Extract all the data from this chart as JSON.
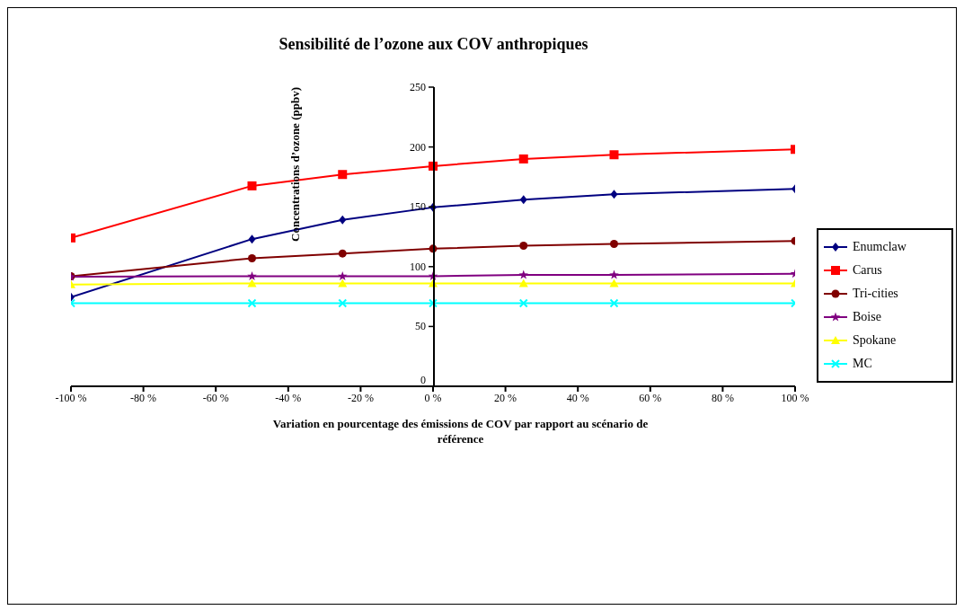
{
  "chart_data": {
    "type": "line",
    "title": "Sensibilité de l’ozone aux COV anthropiques",
    "xlabel": "Variation en pourcentage des émissions de COV par rapport au scénario de référence",
    "ylabel": "Concentrations d’ozone (ppbv)",
    "x": [
      -100,
      -50,
      -25,
      0,
      25,
      50,
      100
    ],
    "series": [
      {
        "name": "Enumclaw",
        "color": "#000080",
        "marker": "diamond",
        "values": [
          74.5,
          123,
          139,
          149.5,
          156,
          160.5,
          165
        ]
      },
      {
        "name": "Carus",
        "color": "#ff0000",
        "marker": "square",
        "values": [
          124,
          167.5,
          177,
          184,
          190,
          193.5,
          198
        ]
      },
      {
        "name": "Tri-cities",
        "color": "#800000",
        "marker": "circle",
        "values": [
          92,
          107,
          111,
          115,
          117.5,
          119,
          121.5
        ]
      },
      {
        "name": "Boise",
        "color": "#800080",
        "marker": "star",
        "values": [
          91.5,
          92,
          92,
          92,
          93,
          93,
          94
        ]
      },
      {
        "name": "Spokane",
        "color": "#ffff00",
        "marker": "triangle",
        "values": [
          85,
          86,
          86,
          86,
          86,
          86,
          86
        ]
      },
      {
        "name": "MC",
        "color": "#00ffff",
        "marker": "cross",
        "values": [
          69.5,
          69.5,
          69.5,
          69.5,
          69.5,
          69.5,
          69.5
        ]
      }
    ],
    "xlim": [
      -100,
      100
    ],
    "xticks": [
      {
        "value": -100,
        "label": "-100 %"
      },
      {
        "value": -80,
        "label": "-80 %"
      },
      {
        "value": -60,
        "label": "-60 %"
      },
      {
        "value": -40,
        "label": "-40 %"
      },
      {
        "value": -20,
        "label": "-20 %"
      },
      {
        "value": 0,
        "label": "0 %"
      },
      {
        "value": 20,
        "label": "20 %"
      },
      {
        "value": 40,
        "label": "40 %"
      },
      {
        "value": 60,
        "label": "60 %"
      },
      {
        "value": 80,
        "label": "80 %"
      },
      {
        "value": 100,
        "label": "100 %"
      }
    ],
    "ylim": [
      0,
      250
    ],
    "yticks": [
      0,
      50,
      100,
      150,
      200,
      250
    ],
    "grid": false,
    "legend": "right",
    "line_style": "solid"
  }
}
